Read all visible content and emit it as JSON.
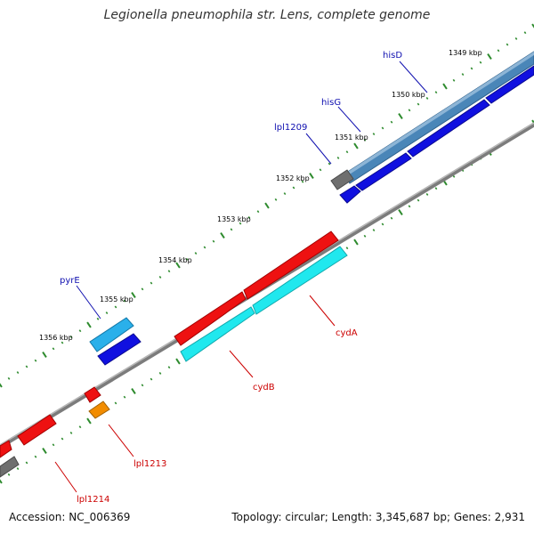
{
  "title": "Legionella pneumophila str. Lens, complete genome",
  "footer": {
    "accession": "Accession: NC_006369",
    "summary": "Topology: circular; Length: 3,345,687 bp; Genes: 2,931"
  },
  "colors": {
    "forward_label": "#1010b0",
    "reverse_label": "#cc0000",
    "backbone": "#8c8c8c",
    "tick": "#2e8b2e",
    "dark_blue": "#1010e0",
    "steel_blue": "#4a86b8",
    "light_blue": "#2ab0ea",
    "red": "#ee1111",
    "cyan": "#20e8ee",
    "orange": "#f28c00",
    "gray": "#7a7a7a"
  },
  "kbp_labels": [
    "1349 kbp",
    "1350 kbp",
    "1351 kbp",
    "1352 kbp",
    "1353 kbp",
    "1354 kbp",
    "1355 kbp",
    "1356 kbp"
  ],
  "gene_labels": [
    {
      "id": "hisD",
      "text": "hisD",
      "strand": "forward"
    },
    {
      "id": "hisG",
      "text": "hisG",
      "strand": "forward"
    },
    {
      "id": "lpl1209",
      "text": "lpl1209",
      "strand": "forward"
    },
    {
      "id": "pyrE",
      "text": "pyrE",
      "strand": "forward"
    },
    {
      "id": "cydA",
      "text": "cydA",
      "strand": "reverse"
    },
    {
      "id": "cydB",
      "text": "cydB",
      "strand": "reverse"
    },
    {
      "id": "lpl1213",
      "text": "lpl1213",
      "strand": "reverse"
    },
    {
      "id": "lpl1214",
      "text": "lpl1214",
      "strand": "reverse"
    }
  ]
}
